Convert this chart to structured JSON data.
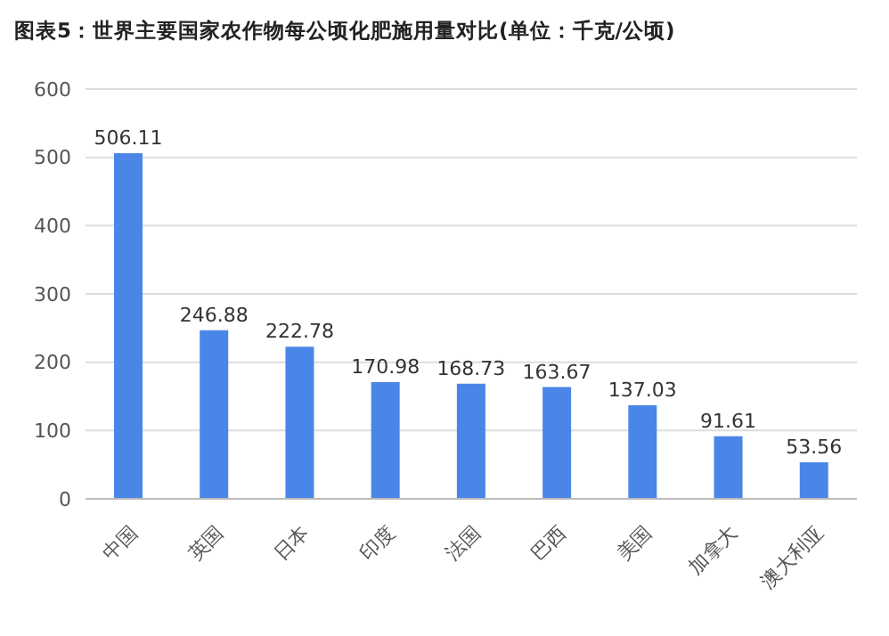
{
  "chart_data": {
    "type": "bar",
    "title": "图表5：世界主要国家农作物每公顷化肥施用量对比(单位：千克/公顷)",
    "categories": [
      "中国",
      "英国",
      "日本",
      "印度",
      "法国",
      "巴西",
      "美国",
      "加拿大",
      "澳大利亚"
    ],
    "values": [
      506.11,
      246.88,
      222.78,
      170.98,
      168.73,
      163.67,
      137.03,
      91.61,
      53.56
    ],
    "color": "#4a86e8",
    "ylim": [
      0,
      600
    ],
    "yticks": [
      0,
      100,
      200,
      300,
      400,
      500,
      600
    ],
    "grid": "y",
    "data_labels": true,
    "legend": false
  }
}
